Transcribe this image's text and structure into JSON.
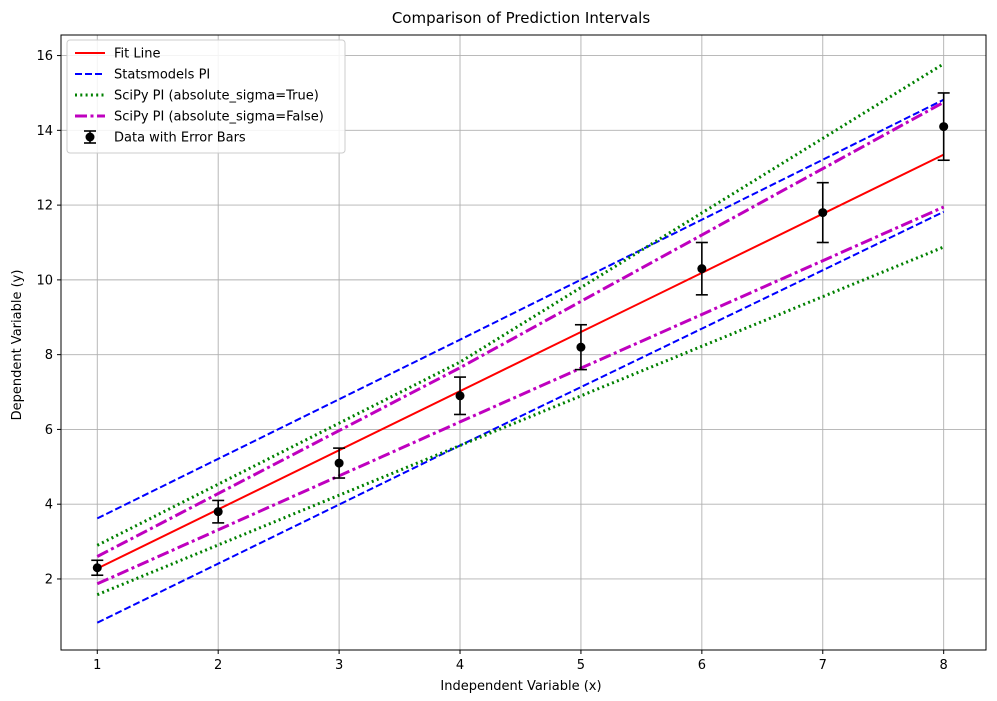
{
  "chart_data": {
    "type": "line",
    "title": "Comparison of Prediction Intervals",
    "xlabel": "Independent Variable (x)",
    "ylabel": "Dependent Variable (y)",
    "xlim": [
      0.7,
      8.35
    ],
    "ylim": [
      0.1,
      16.55
    ],
    "xticks": [
      1,
      2,
      3,
      4,
      5,
      6,
      7,
      8
    ],
    "yticks": [
      2,
      4,
      6,
      8,
      10,
      12,
      14,
      16
    ],
    "grid": true,
    "legend_position": "upper-left",
    "series": [
      {
        "name": "Fit Line",
        "style": "solid",
        "color": "#ff0000",
        "x": [
          1,
          8
        ],
        "y": [
          2.28,
          13.35
        ]
      },
      {
        "name": "Statsmodels PI",
        "style": "dashed",
        "color": "#0000ff",
        "bands": [
          {
            "x": [
              1,
              4,
              8
            ],
            "y": [
              3.62,
              8.4,
              14.82
            ]
          },
          {
            "x": [
              1,
              4,
              8
            ],
            "y": [
              0.83,
              5.57,
              11.82
            ]
          }
        ]
      },
      {
        "name": "SciPy PI (absolute_sigma=True)",
        "style": "dotted",
        "color": "#008000",
        "bands": [
          {
            "x": [
              1,
              4,
              8
            ],
            "y": [
              2.9,
              7.8,
              15.78
            ]
          },
          {
            "x": [
              1,
              4,
              8
            ],
            "y": [
              1.58,
              5.57,
              10.88
            ]
          }
        ]
      },
      {
        "name": "SciPy PI (absolute_sigma=False)",
        "style": "dashdot",
        "color": "#bf00bf",
        "bands": [
          {
            "x": [
              1,
              4,
              8
            ],
            "y": [
              2.6,
              7.65,
              14.75
            ]
          },
          {
            "x": [
              1,
              4,
              8
            ],
            "y": [
              1.87,
              6.2,
              11.95
            ]
          }
        ]
      },
      {
        "name": "Data with Error Bars",
        "style": "errorbar",
        "color": "#000000",
        "points": [
          {
            "x": 1,
            "y": 2.3,
            "err": 0.2
          },
          {
            "x": 2,
            "y": 3.8,
            "err": 0.3
          },
          {
            "x": 3,
            "y": 5.1,
            "err": 0.4
          },
          {
            "x": 4,
            "y": 6.9,
            "err": 0.5
          },
          {
            "x": 5,
            "y": 8.2,
            "err": 0.6
          },
          {
            "x": 6,
            "y": 10.3,
            "err": 0.7
          },
          {
            "x": 7,
            "y": 11.8,
            "err": 0.8
          },
          {
            "x": 8,
            "y": 14.1,
            "err": 0.9
          }
        ]
      }
    ]
  }
}
